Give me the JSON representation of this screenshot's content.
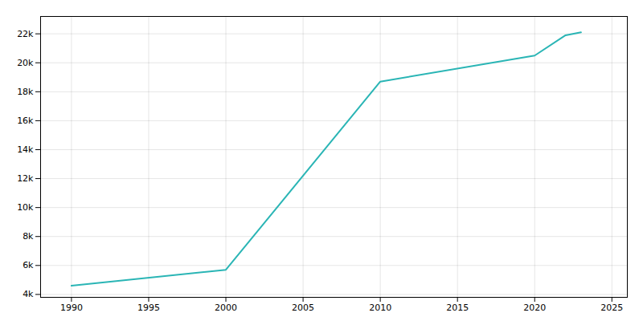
{
  "chart_data": {
    "type": "line",
    "x": [
      1990,
      2000,
      2010,
      2020,
      2022,
      2023
    ],
    "values": [
      4600,
      5700,
      18700,
      20500,
      21900,
      22100
    ],
    "color": "#2ab5b5",
    "xlim": [
      1988,
      2026
    ],
    "xticks": [
      1990,
      1995,
      2000,
      2005,
      2010,
      2015,
      2020,
      2025
    ],
    "ylim": [
      3800,
      23200
    ],
    "yticks": [
      {
        "value": 4000,
        "label": "4k"
      },
      {
        "value": 6000,
        "label": "6k"
      },
      {
        "value": 8000,
        "label": "8k"
      },
      {
        "value": 10000,
        "label": "10k"
      },
      {
        "value": 12000,
        "label": "12k"
      },
      {
        "value": 14000,
        "label": "14k"
      },
      {
        "value": 16000,
        "label": "16k"
      },
      {
        "value": 18000,
        "label": "18k"
      },
      {
        "value": 20000,
        "label": "20k"
      },
      {
        "value": 22000,
        "label": "22k"
      }
    ],
    "grid": true
  }
}
